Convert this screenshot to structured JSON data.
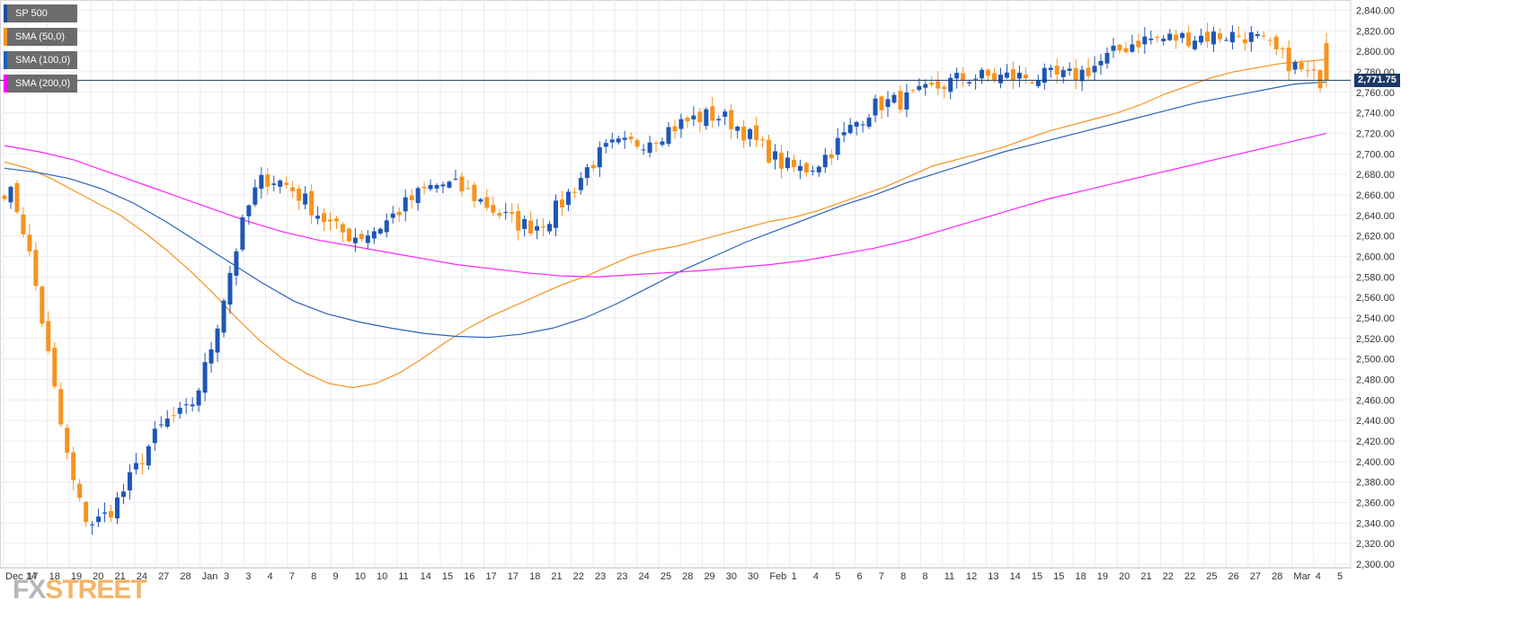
{
  "legend": [
    {
      "label": "SP 500",
      "color": "#1f4e9b"
    },
    {
      "label": "SMA (50,0)",
      "color": "#f7931e"
    },
    {
      "label": "SMA (100,0)",
      "color": "#1f5fbf"
    },
    {
      "label": "SMA (200,0)",
      "color": "#ff00ff"
    }
  ],
  "colors": {
    "up": "#1f56b6",
    "down": "#f7931e",
    "sma50": "#f7931e",
    "sma100": "#2a62b8",
    "sma200": "#ff22ff",
    "grid": "#ececf2",
    "price_line": "#1b3a66"
  },
  "current_price_label": "2,771.75",
  "watermark": {
    "fx": "FX",
    "street": "STREET"
  },
  "chart_data": {
    "type": "candlestick",
    "title": "",
    "xlabel": "",
    "ylabel": "",
    "ylim": [
      2300,
      2850
    ],
    "y_ticks": [
      2300,
      2320,
      2340,
      2360,
      2380,
      2400,
      2420,
      2440,
      2460,
      2480,
      2500,
      2520,
      2540,
      2560,
      2580,
      2600,
      2620,
      2640,
      2660,
      2680,
      2700,
      2720,
      2740,
      2760,
      2780,
      2800,
      2820,
      2840
    ],
    "y_tick_labels": [
      "2,300.00",
      "2,320.00",
      "2,340.00",
      "2,360.00",
      "2,380.00",
      "2,400.00",
      "2,420.00",
      "2,440.00",
      "2,460.00",
      "2,480.00",
      "2,500.00",
      "2,520.00",
      "2,540.00",
      "2,560.00",
      "2,580.00",
      "2,600.00",
      "2,620.00",
      "2,640.00",
      "2,660.00",
      "2,680.00",
      "2,700.00",
      "2,720.00",
      "2,740.00",
      "2,760.00",
      "2,780.00",
      "2,800.00",
      "2,820.00",
      "2,840.00"
    ],
    "x_labels": [
      "Dec 14",
      "17",
      "18",
      "19",
      "20",
      "21",
      "24",
      "27",
      "28",
      "Jan",
      "3",
      "3",
      "4",
      "7",
      "8",
      "9",
      "10",
      "10",
      "11",
      "14",
      "15",
      "16",
      "17",
      "17",
      "18",
      "21",
      "22",
      "23",
      "23",
      "24",
      "25",
      "28",
      "29",
      "30",
      "30",
      "Feb",
      "1",
      "4",
      "5",
      "6",
      "7",
      "8",
      "8",
      "11",
      "12",
      "13",
      "14",
      "15",
      "15",
      "18",
      "19",
      "20",
      "21",
      "22",
      "22",
      "25",
      "26",
      "27",
      "28",
      "Mar",
      "4",
      "5"
    ],
    "current_price": 2771.75,
    "grid": true,
    "legend_position": "top-left",
    "key_points": [
      {
        "date": "Dec 14",
        "price": 2665
      },
      {
        "date": "Dec 24",
        "price": 2341
      },
      {
        "date": "Jan 3",
        "price": 2445
      },
      {
        "date": "Jan 18",
        "price": 2676
      },
      {
        "date": "Jan 23",
        "price": 2620
      },
      {
        "date": "Jan 25",
        "price": 2670
      },
      {
        "date": "Jan 28",
        "price": 2630
      },
      {
        "date": "Feb 1",
        "price": 2708
      },
      {
        "date": "Feb 5",
        "price": 2737
      },
      {
        "date": "Feb 8",
        "price": 2685
      },
      {
        "date": "Feb 14",
        "price": 2750
      },
      {
        "date": "Feb 15",
        "price": 2775
      },
      {
        "date": "Feb 21",
        "price": 2775
      },
      {
        "date": "Feb 25",
        "price": 2812
      },
      {
        "date": "Mar 4",
        "price": 2816
      },
      {
        "date": "Mar 4",
        "price": 2771.75
      }
    ],
    "series": [
      {
        "values": [
          2692,
          2686,
          2676,
          2664,
          2652,
          2640,
          2624,
          2606,
          2586,
          2564,
          2540,
          2518,
          2500,
          2486,
          2476,
          2472,
          2476,
          2486,
          2500,
          2516,
          2530,
          2542,
          2552,
          2562,
          2572,
          2580,
          2590,
          2600,
          2606,
          2610,
          2616,
          2622,
          2628,
          2634,
          2638,
          2644,
          2652,
          2660,
          2668,
          2678,
          2688,
          2694,
          2700,
          2706,
          2714,
          2722,
          2728,
          2734,
          2740,
          2748,
          2758,
          2766,
          2774,
          2780,
          2784,
          2788,
          2790,
          2792
        ]
      },
      {
        "values": [
          2686,
          2682,
          2676,
          2666,
          2652,
          2634,
          2614,
          2594,
          2574,
          2556,
          2544,
          2536,
          2530,
          2525,
          2522,
          2521,
          2524,
          2530,
          2540,
          2554,
          2570,
          2586,
          2600,
          2614,
          2626,
          2638,
          2650,
          2660,
          2672,
          2682,
          2692,
          2702,
          2710,
          2718,
          2726,
          2734,
          2742,
          2750,
          2756,
          2762,
          2768,
          2770
        ]
      },
      {
        "values": [
          2708,
          2702,
          2694,
          2682,
          2670,
          2658,
          2646,
          2634,
          2624,
          2616,
          2610,
          2604,
          2598,
          2592,
          2588,
          2584,
          2581,
          2580,
          2582,
          2584,
          2586,
          2589,
          2592,
          2596,
          2602,
          2608,
          2616,
          2626,
          2636,
          2646,
          2656,
          2664,
          2672,
          2680,
          2688,
          2696,
          2704,
          2712,
          2720
        ]
      }
    ]
  }
}
